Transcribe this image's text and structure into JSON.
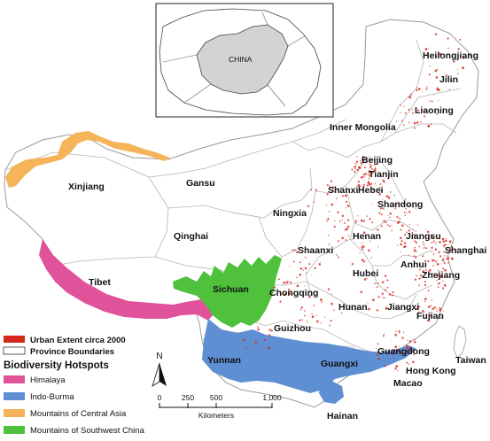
{
  "inset": {
    "label": "CHINA"
  },
  "provinces": [
    {
      "id": "heilongjiang",
      "name": "Heilongjiang"
    },
    {
      "id": "jilin",
      "name": "Jilin"
    },
    {
      "id": "liaoning",
      "name": "Liaoning"
    },
    {
      "id": "inner-mongolia",
      "name": "Inner Mongolia"
    },
    {
      "id": "beijing",
      "name": "Beijing"
    },
    {
      "id": "tianjin",
      "name": "Tianjin"
    },
    {
      "id": "hebei",
      "name": "Hebei"
    },
    {
      "id": "shanxi",
      "name": "Shanxi"
    },
    {
      "id": "shandong",
      "name": "Shandong"
    },
    {
      "id": "xinjiang",
      "name": "Xinjiang"
    },
    {
      "id": "gansu",
      "name": "Gansu"
    },
    {
      "id": "ningxia",
      "name": "Ningxia"
    },
    {
      "id": "qinghai",
      "name": "Qinghai"
    },
    {
      "id": "henan",
      "name": "Henan"
    },
    {
      "id": "jiangsu",
      "name": "Jiangsu"
    },
    {
      "id": "shaanxi",
      "name": "Shaanxi"
    },
    {
      "id": "shanghai",
      "name": "Shanghai"
    },
    {
      "id": "anhui",
      "name": "Anhui"
    },
    {
      "id": "tibet",
      "name": "Tibet"
    },
    {
      "id": "sichuan",
      "name": "Sichuan"
    },
    {
      "id": "hubei",
      "name": "Hubei"
    },
    {
      "id": "zhejiang",
      "name": "Zhejiang"
    },
    {
      "id": "chongqing",
      "name": "Chongqing"
    },
    {
      "id": "hunan",
      "name": "Hunan"
    },
    {
      "id": "jiangxi",
      "name": "Jiangxi"
    },
    {
      "id": "fujian",
      "name": "Fujian"
    },
    {
      "id": "guizhou",
      "name": "Guizhou"
    },
    {
      "id": "taiwan",
      "name": "Taiwan"
    },
    {
      "id": "yunnan",
      "name": "Yunnan"
    },
    {
      "id": "guangdong",
      "name": "Guangdong"
    },
    {
      "id": "guangxi",
      "name": "Guangxi"
    },
    {
      "id": "hong-kong",
      "name": "Hong Kong"
    },
    {
      "id": "macao",
      "name": "Macao"
    },
    {
      "id": "hainan",
      "name": "Hainan"
    }
  ],
  "legend": {
    "urban": "Urban Extent circa 2000",
    "boundaries": "Province Boundaries",
    "hotspots_title": "Biodiversity Hotspots",
    "hotspots": [
      {
        "name": "Himalaya",
        "color": "#e0529a"
      },
      {
        "name": "Indo-Burma",
        "color": "#5f8fd3"
      },
      {
        "name": "Mountains of Central Asia",
        "color": "#f5b35a"
      },
      {
        "name": "Mountains of Southwest China",
        "color": "#4fc13d"
      }
    ],
    "urban_color": "#d7281c"
  },
  "north_arrow": {
    "label": "N"
  },
  "scale_bar": {
    "ticks": [
      "0",
      "250",
      "500",
      "1,000"
    ],
    "unit": "Kilometers"
  }
}
